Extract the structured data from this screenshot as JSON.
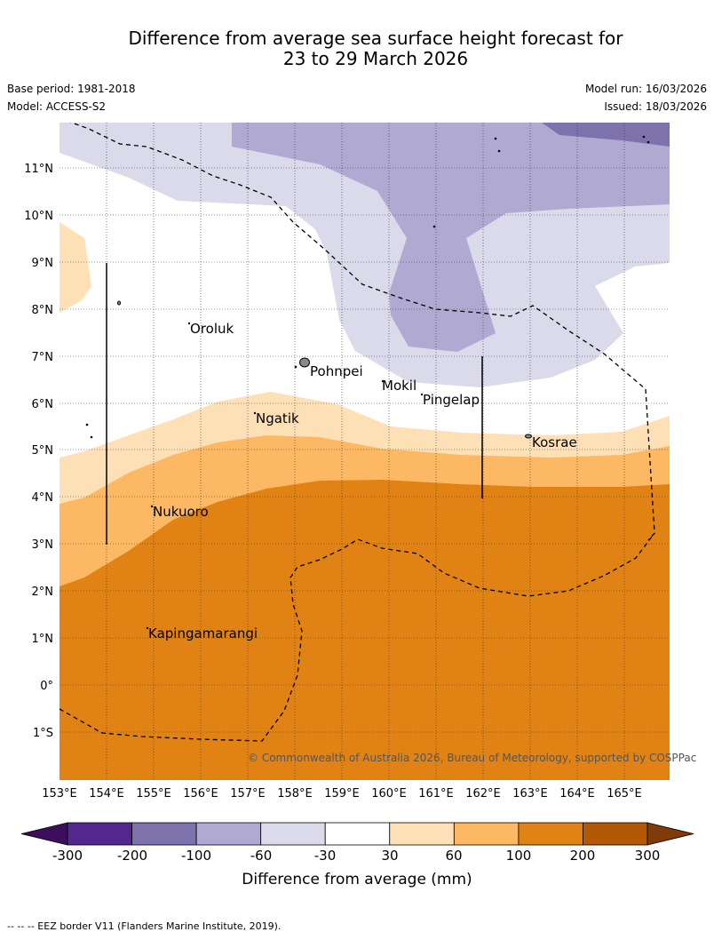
{
  "title": {
    "line1": "Difference from average sea surface height forecast for",
    "line2": "23 to 29 March 2026"
  },
  "meta": {
    "base_period": "Base period: 1981-2018",
    "model": "Model: ACCESS-S2",
    "model_run": "Model run: 16/03/2026",
    "issued": "Issued: 18/03/2026"
  },
  "map": {
    "latitude_labels": [
      "11°N",
      "10°N",
      "9°N",
      "8°N",
      "7°N",
      "6°N",
      "5°N",
      "4°N",
      "3°N",
      "2°N",
      "1°N",
      "0°",
      "1°S"
    ],
    "longitude_labels": [
      "153°E",
      "154°E",
      "155°E",
      "156°E",
      "157°E",
      "158°E",
      "159°E",
      "160°E",
      "161°E",
      "162°E",
      "163°E",
      "164°E",
      "165°E"
    ],
    "places": {
      "oroluk": "Oroluk",
      "pohnpei": "Pohnpei",
      "mokil": "Mokil",
      "pingelap": "Pingelap",
      "ngatik": "Ngatik",
      "kosrae": "Kosrae",
      "nukuoro": "Nukuoro",
      "kapingamarangi": "Kapingamarangi"
    },
    "copyright": "© Commonwealth of Australia 2026, Bureau of Meteorology, supported by COSPPac"
  },
  "colorbar": {
    "ticks": [
      "-300",
      "-200",
      "-100",
      "-60",
      "-30",
      "30",
      "60",
      "100",
      "200",
      "300"
    ],
    "title": "Difference from average (mm)",
    "colors": [
      "#3b0f5c",
      "#54278f",
      "#7e72ad",
      "#b0a9d2",
      "#dadaeb",
      "#ffffff",
      "#fee0b6",
      "#fdb863",
      "#e08214",
      "#b35806",
      "#7f3b08"
    ]
  },
  "footer": "-- -- -- EEZ border V11 (Flanders Marine Institute, 2019)."
}
